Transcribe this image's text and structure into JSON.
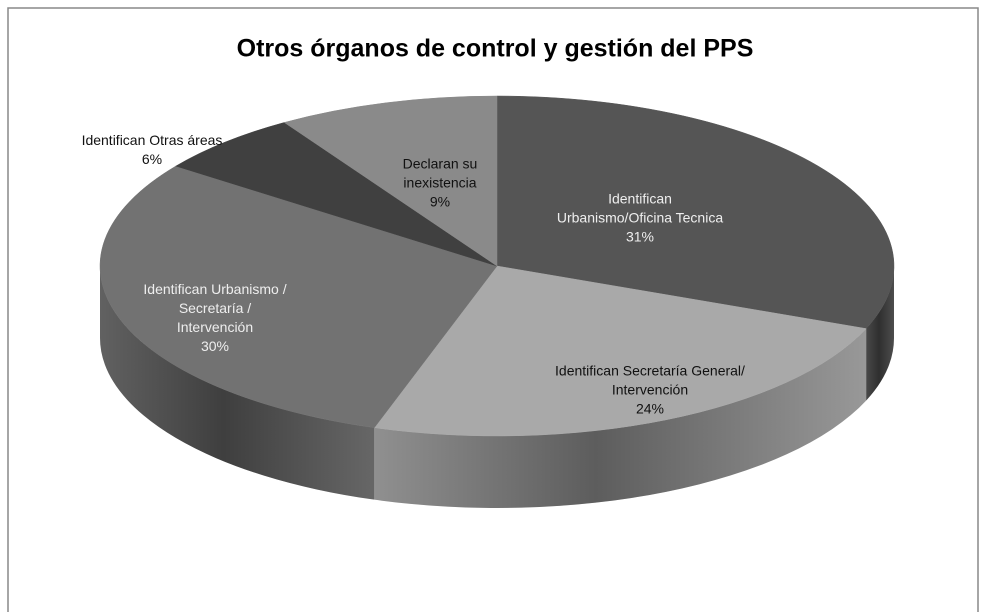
{
  "chart_data": {
    "type": "pie",
    "title": "Otros órganos de control y gestión del PPS",
    "categories": [
      "Identifican Urbanismo/Oficina Tecnica",
      "Identifican Secretaría General/ Intervención",
      "Identifican Urbanismo / Secretaría / Intervención",
      "Identifican Otras áreas",
      "Declaran su inexistencia"
    ],
    "values": [
      31,
      24,
      30,
      6,
      9
    ],
    "value_labels": [
      "31%",
      "24%",
      "30%",
      "6%",
      "9%"
    ],
    "colors": [
      "#555555",
      "#a9a9a9",
      "#727272",
      "#404040",
      "#8a8a8a"
    ]
  }
}
